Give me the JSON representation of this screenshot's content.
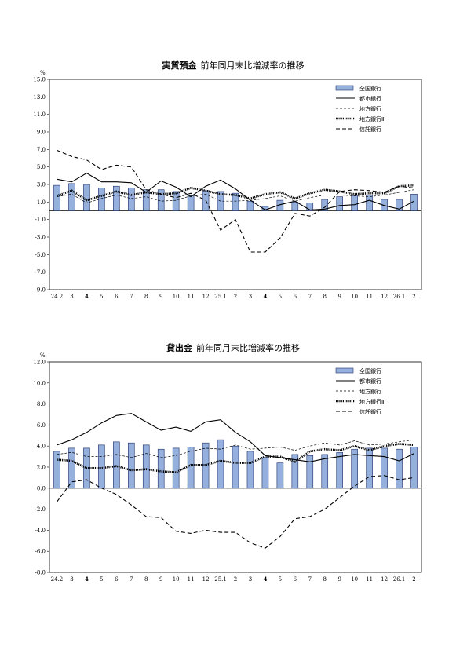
{
  "chart_data": [
    {
      "type": "bar",
      "title_bold": "実質預金",
      "title_rest": "前年同月末比増減率の推移",
      "ylabel": "%",
      "ylim": [
        -9,
        15
      ],
      "yticks": [
        "15.0",
        "13.0",
        "11.0",
        "9.0",
        "7.0",
        "5.0",
        "3.0",
        "1.0",
        "-1.0",
        "-3.0",
        "-5.0",
        "-7.0",
        "-9.0"
      ],
      "ytick_values": [
        15,
        13,
        11,
        9,
        7,
        5,
        3,
        1,
        -1,
        -3,
        -5,
        -7,
        -9
      ],
      "categories": [
        "24.2",
        "3",
        "4",
        "5",
        "6",
        "7",
        "8",
        "9",
        "10",
        "11",
        "12",
        "25.1",
        "2",
        "3",
        "4",
        "5",
        "6",
        "7",
        "8",
        "9",
        "10",
        "11",
        "12",
        "26.1",
        "2"
      ],
      "bold_categories": [
        "4"
      ],
      "legend": [
        "全国銀行",
        "都市銀行",
        "地方銀行",
        "地方銀行Ⅱ",
        "信託銀行"
      ],
      "bars": {
        "name": "全国銀行",
        "values": [
          2.9,
          3.1,
          3.0,
          2.6,
          2.8,
          2.6,
          2.4,
          2.4,
          2.2,
          1.8,
          2.3,
          2.2,
          2.0,
          1.1,
          0.5,
          1.2,
          1.0,
          0.9,
          1.3,
          1.6,
          1.7,
          1.8,
          1.3,
          1.3,
          1.9
        ]
      },
      "series": [
        {
          "name": "都市銀行",
          "style": "solid",
          "values": [
            3.6,
            3.3,
            4.3,
            3.3,
            3.3,
            3.2,
            2.1,
            3.4,
            2.7,
            1.6,
            2.8,
            3.5,
            2.5,
            1.2,
            0.1,
            0.7,
            1.1,
            0.1,
            0.2,
            0.6,
            0.7,
            1.2,
            0.6,
            0.2,
            1.1
          ]
        },
        {
          "name": "地方銀行",
          "style": "thin-dash",
          "values": [
            1.6,
            1.9,
            0.9,
            1.4,
            1.8,
            1.4,
            1.6,
            1.1,
            1.2,
            1.7,
            1.9,
            1.1,
            1.1,
            1.2,
            1.4,
            1.7,
            1.1,
            1.5,
            1.8,
            1.8,
            1.7,
            1.6,
            1.8,
            2.1,
            2.4
          ]
        },
        {
          "name": "地方銀行Ⅱ",
          "style": "dotted-thick",
          "values": [
            1.7,
            2.3,
            1.2,
            1.7,
            2.2,
            1.8,
            2.1,
            1.9,
            2.0,
            2.6,
            2.3,
            1.9,
            1.8,
            1.4,
            1.9,
            2.1,
            1.4,
            2.0,
            2.4,
            2.2,
            1.9,
            2.0,
            2.0,
            2.8,
            2.9
          ]
        },
        {
          "name": "信託銀行",
          "style": "dash",
          "values": [
            6.9,
            6.2,
            5.8,
            4.7,
            5.2,
            5.0,
            2.4,
            1.9,
            1.5,
            2.0,
            1.2,
            -2.2,
            -1.0,
            -4.7,
            -4.7,
            -3.1,
            -0.3,
            -0.6,
            0.4,
            2.2,
            2.4,
            2.3,
            2.1,
            2.8,
            2.6
          ]
        }
      ]
    },
    {
      "type": "bar",
      "title_bold": "貸出金",
      "title_rest": "前年同月末比増減率の推移",
      "ylabel": "%",
      "ylim": [
        -8,
        12
      ],
      "yticks": [
        "12.0",
        "10.0",
        "8.0",
        "6.0",
        "4.0",
        "2.0",
        "0.0",
        "-2.0",
        "-4.0",
        "-6.0",
        "-8.0"
      ],
      "ytick_values": [
        12,
        10,
        8,
        6,
        4,
        2,
        0,
        -2,
        -4,
        -6,
        -8
      ],
      "categories": [
        "24.2",
        "3",
        "4",
        "5",
        "6",
        "7",
        "8",
        "9",
        "10",
        "11",
        "12",
        "25.1",
        "2",
        "3",
        "4",
        "5",
        "6",
        "7",
        "8",
        "9",
        "10",
        "11",
        "12",
        "26.1",
        "2"
      ],
      "bold_categories": [
        "4"
      ],
      "legend": [
        "全国銀行",
        "都市銀行",
        "地方銀行",
        "地方銀行Ⅱ",
        "信託銀行"
      ],
      "bars": {
        "name": "全国銀行",
        "values": [
          3.5,
          3.8,
          3.8,
          4.1,
          4.4,
          4.3,
          4.1,
          3.7,
          3.8,
          3.9,
          4.3,
          4.6,
          4.0,
          3.5,
          2.9,
          2.4,
          3.2,
          3.1,
          3.2,
          3.4,
          3.7,
          3.8,
          3.8,
          3.7,
          3.9
        ]
      },
      "series": [
        {
          "name": "都市銀行",
          "style": "solid",
          "values": [
            4.1,
            4.6,
            5.3,
            6.2,
            6.9,
            7.1,
            6.3,
            5.5,
            5.8,
            5.4,
            6.3,
            6.5,
            5.3,
            4.4,
            3.1,
            2.9,
            2.7,
            2.5,
            2.8,
            3.0,
            3.2,
            3.1,
            3.0,
            2.6,
            3.3
          ]
        },
        {
          "name": "地方銀行",
          "style": "thin-dash",
          "values": [
            3.2,
            3.4,
            3.0,
            3.0,
            3.2,
            2.9,
            3.3,
            2.9,
            3.1,
            3.5,
            3.8,
            3.7,
            4.1,
            3.7,
            3.8,
            3.9,
            3.6,
            4.0,
            4.3,
            4.1,
            4.5,
            4.1,
            4.2,
            4.4,
            4.6
          ]
        },
        {
          "name": "地方銀行Ⅱ",
          "style": "dotted-thick",
          "values": [
            2.7,
            2.6,
            1.9,
            1.9,
            2.1,
            1.7,
            1.8,
            1.6,
            1.5,
            2.2,
            2.2,
            2.6,
            2.4,
            2.4,
            3.0,
            3.0,
            2.5,
            3.5,
            3.7,
            3.6,
            4.0,
            3.6,
            4.0,
            4.2,
            4.1
          ]
        },
        {
          "name": "信託銀行",
          "style": "dash",
          "values": [
            -1.3,
            0.6,
            0.8,
            0.0,
            -0.6,
            -1.6,
            -2.7,
            -2.8,
            -4.1,
            -4.3,
            -4.0,
            -4.2,
            -4.2,
            -5.2,
            -5.7,
            -4.6,
            -2.9,
            -2.7,
            -2.0,
            -0.9,
            0.2,
            1.1,
            1.2,
            0.8,
            1.0
          ]
        }
      ]
    }
  ]
}
